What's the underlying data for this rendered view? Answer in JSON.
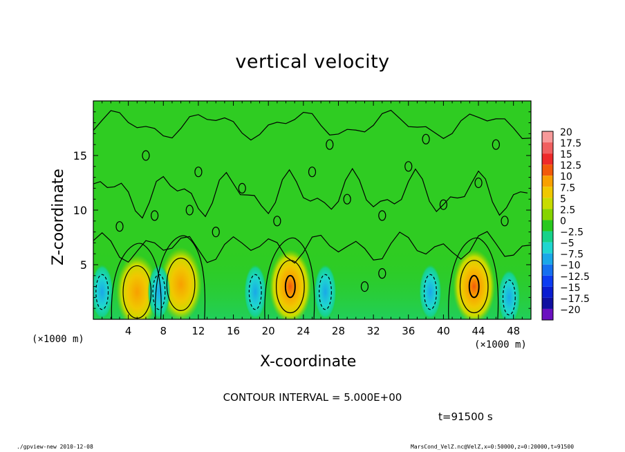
{
  "chart_data": {
    "type": "heatmap",
    "title": "vertical velocity",
    "xlabel": "X-coordinate",
    "ylabel": "Z-coordinate",
    "x_unit_label": "(×1000 m)",
    "x_ticks": [
      "4",
      "8",
      "12",
      "16",
      "20",
      "24",
      "28",
      "32",
      "36",
      "40",
      "44",
      "48"
    ],
    "y_ticks": [
      "5",
      "10",
      "15"
    ],
    "xlim": [
      0,
      50
    ],
    "ylim": [
      0,
      20
    ],
    "colorbar": {
      "labels": [
        "20",
        "17.5",
        "15",
        "12.5",
        "10",
        "7.5",
        "5",
        "2.5",
        "0",
        "-2.5",
        "-5",
        "-7.5",
        "-10",
        "-12.5",
        "-15",
        "-17.5",
        "-20"
      ],
      "colors": [
        "#f79a9a",
        "#f06060",
        "#ee2a2a",
        "#f25a0a",
        "#f8a000",
        "#f0c800",
        "#c8dc00",
        "#86d400",
        "#28c81e",
        "#16d28a",
        "#1fd6d0",
        "#1aa8e8",
        "#1570f0",
        "#0c3cf2",
        "#0a1cd0",
        "#1010a0",
        "#6a10c0"
      ]
    },
    "cells_features": [
      {
        "x": 5,
        "z": 2.5,
        "w": "updraft",
        "peak": 5
      },
      {
        "x": 10,
        "z": 3.2,
        "w": "updraft",
        "peak": 5
      },
      {
        "x": 22.5,
        "z": 3.0,
        "w": "updraft",
        "peak": 10
      },
      {
        "x": 43.5,
        "z": 3.0,
        "w": "updraft",
        "peak": 10
      },
      {
        "x": 1,
        "z": 2.5,
        "w": "downdraft",
        "peak": -5
      },
      {
        "x": 7.5,
        "z": 2.5,
        "w": "downdraft",
        "peak": -5
      },
      {
        "x": 18.5,
        "z": 2.5,
        "w": "downdraft",
        "peak": -5
      },
      {
        "x": 26.5,
        "z": 2.5,
        "w": "downdraft",
        "peak": -5
      },
      {
        "x": 38.5,
        "z": 2.5,
        "w": "downdraft",
        "peak": -5
      },
      {
        "x": 47.5,
        "z": 2.0,
        "w": "downdraft",
        "peak": -5
      }
    ],
    "contour_interval_text": "CONTOUR INTERVAL = 5.000E+00",
    "time_text": "t=91500  s"
  },
  "footer": {
    "left": "./gpview-new   2010-12-08",
    "right": "MarsCond_VelZ.nc@VelZ,x=0:50000,z=0:20000,t=91500"
  }
}
